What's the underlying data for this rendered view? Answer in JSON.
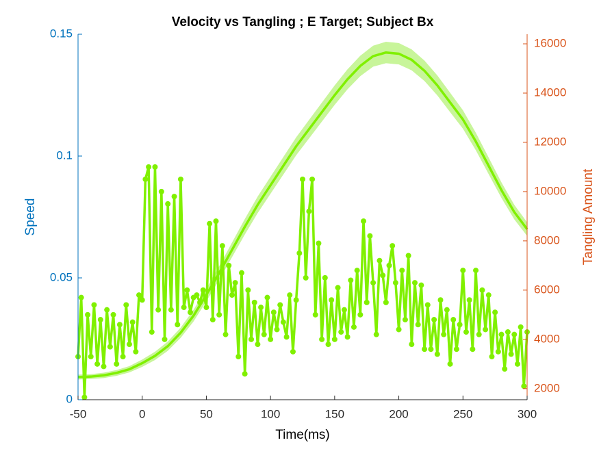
{
  "chart_data": {
    "type": "line",
    "title": "Velocity vs Tangling ; E Target; Subject Bx",
    "xlabel": "Time(ms)",
    "ylabel": "Speed",
    "y2label": "Tangling Amount",
    "xlim": [
      -50,
      300
    ],
    "xticks": [
      -50,
      0,
      50,
      100,
      150,
      200,
      250,
      300
    ],
    "ylim": [
      0,
      0.15
    ],
    "yticks": [
      0,
      0.05,
      0.1,
      0.15
    ],
    "y2lim": [
      1550,
      16390
    ],
    "y2ticks": [
      2000,
      4000,
      6000,
      8000,
      10000,
      12000,
      14000,
      16000
    ],
    "y_color": "#0072bd",
    "y2_color": "#d95319",
    "series": [
      {
        "name": "Speed",
        "color": "#80f000",
        "band_color": "#c8f59a",
        "x": [
          -50,
          -40,
          -30,
          -20,
          -10,
          0,
          10,
          20,
          30,
          40,
          50,
          60,
          70,
          80,
          90,
          100,
          110,
          120,
          130,
          140,
          150,
          160,
          170,
          180,
          190,
          200,
          210,
          220,
          230,
          240,
          250,
          260,
          270,
          280,
          290,
          300
        ],
        "values": [
          0.0093,
          0.0095,
          0.01,
          0.011,
          0.0125,
          0.015,
          0.018,
          0.022,
          0.0275,
          0.0345,
          0.043,
          0.052,
          0.0615,
          0.071,
          0.08,
          0.088,
          0.096,
          0.104,
          0.111,
          0.118,
          0.125,
          0.1315,
          0.137,
          0.141,
          0.1425,
          0.142,
          0.1395,
          0.135,
          0.129,
          0.122,
          0.115,
          0.106,
          0.096,
          0.086,
          0.077,
          0.07
        ],
        "lower": [
          0.0083,
          0.0085,
          0.0089,
          0.0098,
          0.0112,
          0.0135,
          0.0163,
          0.0201,
          0.0254,
          0.0321,
          0.0404,
          0.0492,
          0.0585,
          0.0678,
          0.0766,
          0.0845,
          0.0924,
          0.1003,
          0.1072,
          0.1141,
          0.121,
          0.1274,
          0.1328,
          0.1367,
          0.1381,
          0.1376,
          0.1352,
          0.1308,
          0.1249,
          0.118,
          0.1112,
          0.1024,
          0.0926,
          0.0828,
          0.074,
          0.0672
        ],
        "upper": [
          0.0103,
          0.0105,
          0.0111,
          0.0122,
          0.0138,
          0.0165,
          0.0197,
          0.0239,
          0.0296,
          0.0369,
          0.0456,
          0.0548,
          0.0645,
          0.0742,
          0.0834,
          0.0915,
          0.0996,
          0.1077,
          0.1148,
          0.1219,
          0.129,
          0.1356,
          0.1412,
          0.1453,
          0.1469,
          0.1464,
          0.1438,
          0.1392,
          0.1331,
          0.126,
          0.1188,
          0.1096,
          0.0994,
          0.0892,
          0.08,
          0.0728
        ]
      },
      {
        "name": "Tangling",
        "color": "#80f000",
        "axis": "y2",
        "x": [
          -50,
          -47.5,
          -45,
          -42.5,
          -40,
          -37.5,
          -35,
          -32.5,
          -30,
          -27.5,
          -25,
          -22.5,
          -20,
          -17.5,
          -15,
          -12.5,
          -10,
          -7.5,
          -5,
          -2.5,
          0,
          2.5,
          5,
          7.5,
          10,
          12.5,
          15,
          17.5,
          20,
          22.5,
          25,
          27.5,
          30,
          32.5,
          35,
          37.5,
          40,
          42.5,
          45,
          47.5,
          50,
          52.5,
          55,
          57.5,
          60,
          62.5,
          65,
          67.5,
          70,
          72.5,
          75,
          77.5,
          80,
          82.5,
          85,
          87.5,
          90,
          92.5,
          95,
          97.5,
          100,
          102.5,
          105,
          107.5,
          110,
          112.5,
          115,
          117.5,
          120,
          122.5,
          125,
          127.5,
          130,
          132.5,
          135,
          137.5,
          140,
          142.5,
          145,
          147.5,
          150,
          152.5,
          155,
          157.5,
          160,
          162.5,
          165,
          167.5,
          170,
          172.5,
          175,
          177.5,
          180,
          182.5,
          185,
          187.5,
          190,
          192.5,
          195,
          197.5,
          200,
          202.5,
          205,
          207.5,
          210,
          212.5,
          215,
          217.5,
          220,
          222.5,
          225,
          227.5,
          230,
          232.5,
          235,
          237.5,
          240,
          242.5,
          245,
          247.5,
          250,
          252.5,
          255,
          257.5,
          260,
          262.5,
          265,
          267.5,
          270,
          272.5,
          275,
          277.5,
          280,
          282.5,
          285,
          287.5,
          290,
          292.5,
          295,
          297.5,
          300
        ],
        "values": [
          3300,
          5700,
          1650,
          5000,
          3300,
          5400,
          3000,
          4800,
          2900,
          5200,
          3700,
          5000,
          3000,
          4600,
          3300,
          5400,
          3800,
          4700,
          3500,
          5800,
          5600,
          10500,
          11000,
          4300,
          11000,
          5200,
          10000,
          4000,
          9500,
          5200,
          9800,
          4600,
          10500,
          5300,
          6000,
          5100,
          5700,
          5800,
          5500,
          6000,
          5300,
          8700,
          4800,
          8800,
          5000,
          7800,
          4200,
          7000,
          5800,
          6300,
          3300,
          6700,
          2600,
          6000,
          4000,
          5500,
          3800,
          5300,
          4200,
          5700,
          4000,
          5100,
          4400,
          5400,
          4700,
          4100,
          5800,
          3500,
          5600,
          7500,
          10500,
          6500,
          9200,
          10500,
          5000,
          7900,
          4000,
          6500,
          3800,
          5600,
          4000,
          6100,
          4300,
          5200,
          4100,
          6400,
          4500,
          6800,
          5000,
          8800,
          5500,
          8200,
          6300,
          4200,
          7200,
          6600,
          5500,
          7000,
          7800,
          6300,
          4400,
          6800,
          4800,
          7400,
          3800,
          6300,
          4600,
          6200,
          3600,
          5400,
          3600,
          4800,
          3400,
          5600,
          4200,
          5200,
          3000,
          4800,
          3600,
          4600,
          6800,
          4300,
          5600,
          3600,
          6800,
          4200,
          6000,
          4400,
          5800,
          3300,
          5100,
          3500,
          4200,
          2800,
          4300,
          3400,
          4200,
          3000,
          4500,
          2100,
          4300
        ]
      }
    ]
  }
}
